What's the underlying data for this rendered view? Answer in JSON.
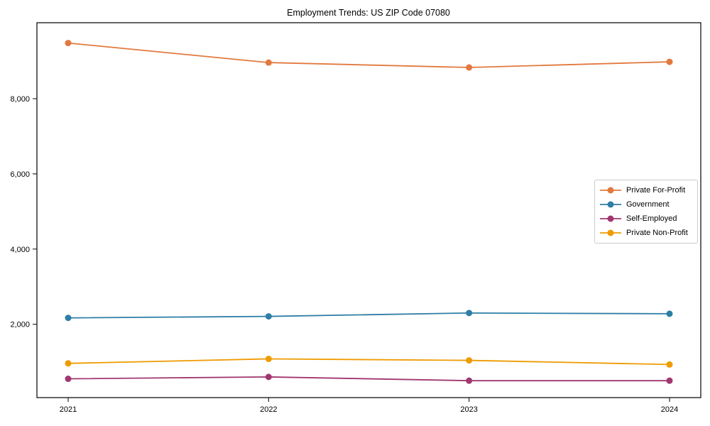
{
  "chart_data": {
    "type": "line",
    "title": "Employment Trends: US ZIP Code 07080",
    "x": [
      2021,
      2022,
      2023,
      2024
    ],
    "x_tick_labels": [
      "2021",
      "2022",
      "2023",
      "2024"
    ],
    "series": [
      {
        "name": "Private For-Profit",
        "color": "#E2793F",
        "values": [
          9480,
          8960,
          8830,
          8980
        ]
      },
      {
        "name": "Government",
        "color": "#2E7EA6",
        "values": [
          2170,
          2210,
          2300,
          2280
        ]
      },
      {
        "name": "Self-Employed",
        "color": "#A13770",
        "values": [
          550,
          600,
          500,
          500
        ]
      },
      {
        "name": "Private Non-Profit",
        "color": "#EE9B01",
        "values": [
          960,
          1080,
          1040,
          930
        ]
      }
    ],
    "y_ticks": [
      2000,
      4000,
      6000,
      8000
    ],
    "y_tick_labels": [
      "2,000",
      "4,000",
      "6,000",
      "8,000"
    ],
    "ylim": [
      50,
      10020
    ],
    "grid": false,
    "legend_position": "center right",
    "marker": "o",
    "axis_color": "#000000",
    "legend_border_color": "#cccccc"
  }
}
